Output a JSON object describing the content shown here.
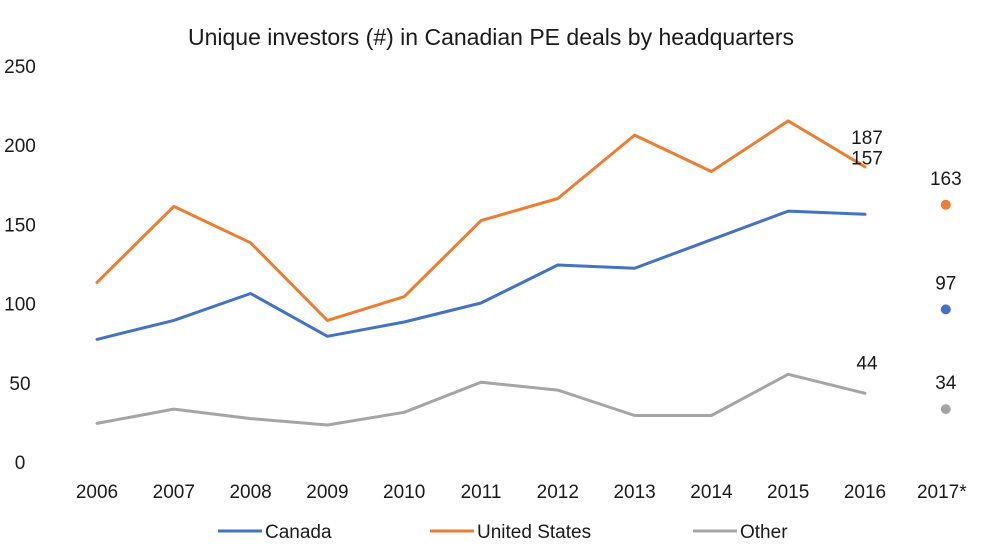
{
  "chart_data": {
    "type": "line",
    "title": "Unique investors (#) in Canadian PE deals by headquarters",
    "xlabel": "",
    "ylabel": "",
    "categories": [
      "2006",
      "2007",
      "2008",
      "2009",
      "2010",
      "2011",
      "2012",
      "2013",
      "2014",
      "2015",
      "2016",
      "2017*"
    ],
    "ylim": [
      0,
      250
    ],
    "yticks": [
      0,
      50,
      100,
      150,
      200,
      250
    ],
    "grid": false,
    "legend": "bottom",
    "series": [
      {
        "name": "Canada",
        "color": "#4472c4",
        "values": [
          78,
          90,
          107,
          80,
          89,
          101,
          125,
          123,
          141,
          159,
          157,
          null
        ],
        "partial_year_value": 97,
        "labels": {
          "2016": "157",
          "2017*": "97"
        }
      },
      {
        "name": "United States",
        "color": "#ed7d31",
        "values": [
          114,
          162,
          139,
          90,
          105,
          153,
          167,
          207,
          184,
          216,
          187,
          null
        ],
        "partial_year_value": 163,
        "labels": {
          "2016": "187",
          "2017*": "163"
        }
      },
      {
        "name": "Other",
        "color": "#a5a5a5",
        "values": [
          25,
          34,
          28,
          24,
          32,
          51,
          46,
          30,
          30,
          56,
          44,
          null
        ],
        "partial_year_value": 34,
        "labels": {
          "2016": "44",
          "2017*": "34"
        }
      }
    ]
  }
}
